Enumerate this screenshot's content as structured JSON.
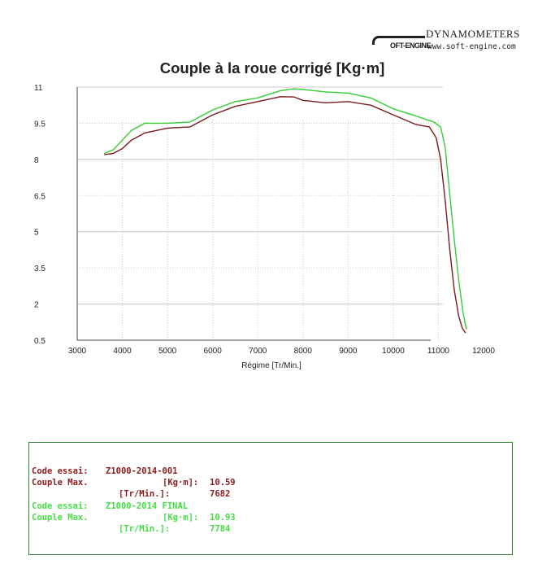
{
  "logo": {
    "brand": "DYNAMOMETERS",
    "mark": "OFT-ENGINE",
    "url": "www.soft-engine.com"
  },
  "colors": {
    "run1": "#7a1b1b",
    "run2": "#33cc33",
    "grid": "#c8c8c8",
    "box": "#2e7d32"
  },
  "chart_data": {
    "type": "line",
    "title": "Couple à la roue corrigé [Kg·m]",
    "xlabel": "Régime [Tr/Min.]",
    "ylabel": "",
    "xlim": [
      3000,
      12000
    ],
    "ylim": [
      0.5,
      11
    ],
    "xticks": [
      3000,
      4000,
      5000,
      6000,
      7000,
      8000,
      9000,
      10000,
      11000,
      12000
    ],
    "yticks": [
      0.5,
      2,
      3.5,
      5,
      6.5,
      8,
      9.5,
      11
    ],
    "ytick_labels": [
      "0.5",
      "2",
      "3.5",
      "5",
      "6.5",
      "8",
      "9.5",
      "11"
    ],
    "grid": true,
    "legend": "none",
    "series": [
      {
        "color": "#7a1b1b",
        "x": [
          3600,
          3800,
          4000,
          4200,
          4500,
          5000,
          5500,
          6000,
          6500,
          7000,
          7500,
          7800,
          8000,
          8500,
          9000,
          9500,
          10000,
          10500,
          10800,
          10950,
          11050,
          11150,
          11250,
          11350,
          11450,
          11530,
          11600
        ],
        "y": [
          8.2,
          8.25,
          8.45,
          8.8,
          9.1,
          9.3,
          9.35,
          9.85,
          10.2,
          10.4,
          10.6,
          10.59,
          10.45,
          10.35,
          10.4,
          10.25,
          9.85,
          9.45,
          9.35,
          8.9,
          8.0,
          6.3,
          4.3,
          2.6,
          1.5,
          1.0,
          0.8
        ],
        "name": "Z1000-2014-001"
      },
      {
        "color": "#33cc33",
        "x": [
          3600,
          3800,
          4000,
          4200,
          4500,
          5000,
          5500,
          6000,
          6500,
          7000,
          7500,
          7800,
          8000,
          8500,
          9000,
          9500,
          10000,
          10500,
          10900,
          11050,
          11150,
          11250,
          11350,
          11450,
          11550,
          11620
        ],
        "y": [
          8.25,
          8.4,
          8.8,
          9.2,
          9.5,
          9.5,
          9.55,
          10.05,
          10.4,
          10.55,
          10.85,
          10.93,
          10.9,
          10.8,
          10.75,
          10.55,
          10.1,
          9.8,
          9.55,
          9.35,
          8.5,
          6.6,
          4.7,
          3.0,
          1.6,
          0.95
        ],
        "name": "Z1000-2014 FINAL"
      }
    ]
  },
  "results": {
    "run1": {
      "code_label": "Code essai:",
      "code_value": "Z1000-2014-001",
      "couple_label": "Couple Max.",
      "couple_unit": "[Kg·m]:",
      "couple_value": "10.59",
      "rpm_unit": "[Tr/Min.]:",
      "rpm_value": "7682"
    },
    "run2": {
      "code_label": "Code essai:",
      "code_value": "Z1000-2014 FINAL",
      "couple_label": "Couple Max.",
      "couple_unit": "[Kg·m]:",
      "couple_value": "10.93",
      "rpm_unit": "[Tr/Min.]:",
      "rpm_value": "7784"
    }
  }
}
